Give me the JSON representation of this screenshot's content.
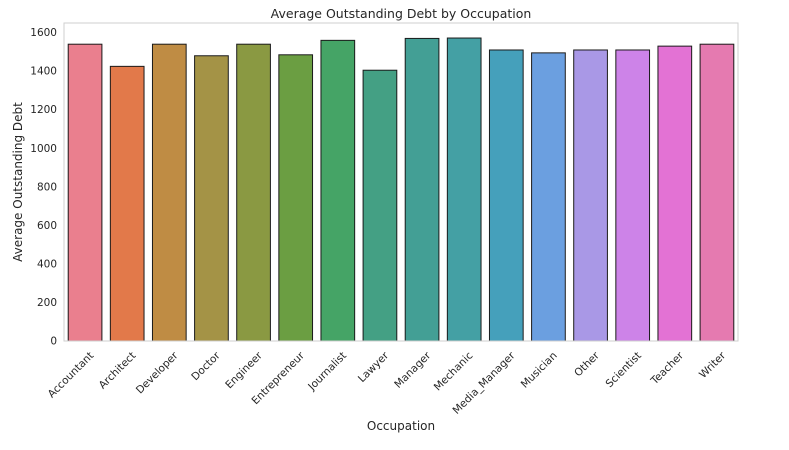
{
  "chart_data": {
    "type": "bar",
    "title": "Average Outstanding Debt by Occupation",
    "xlabel": "Occupation",
    "ylabel": "Average Outstanding Debt",
    "ylim": [
      0,
      1650
    ],
    "yticks": [
      0,
      200,
      400,
      600,
      800,
      1000,
      1200,
      1400,
      1600
    ],
    "grid": false,
    "legend": "none",
    "categories": [
      "Accountant",
      "Architect",
      "Developer",
      "Doctor",
      "Engineer",
      "Entrepreneur",
      "Journalist",
      "Lawyer",
      "Manager",
      "Mechanic",
      "Media_Manager",
      "Musician",
      "Other",
      "Scientist",
      "Teacher",
      "Writer"
    ],
    "values": [
      1540,
      1425,
      1540,
      1480,
      1540,
      1485,
      1560,
      1405,
      1570,
      1572,
      1510,
      1495,
      1510,
      1510,
      1530,
      1540
    ],
    "colors": [
      "#ea7f8e",
      "#e2794a",
      "#bf8c44",
      "#a49346",
      "#8a9942",
      "#6b9e42",
      "#45a466",
      "#44a084",
      "#439f95",
      "#44a0a4",
      "#45a0bb",
      "#6b9fe0",
      "#a998e6",
      "#cd83e8",
      "#e372d4",
      "#e57ab0"
    ]
  }
}
